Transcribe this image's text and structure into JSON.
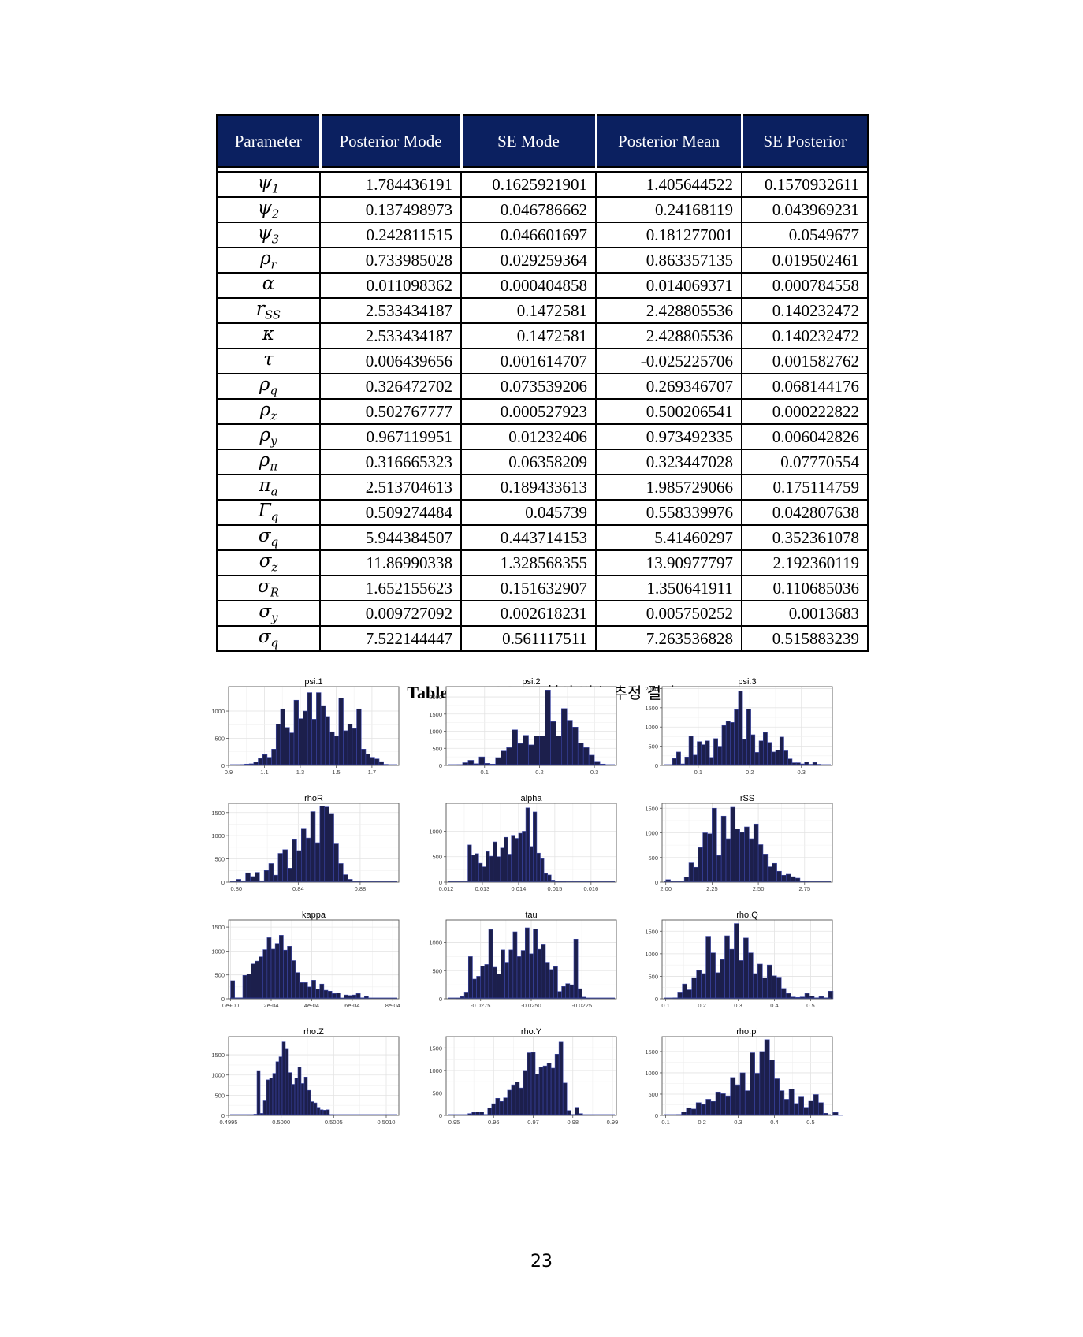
{
  "table": {
    "headers": [
      "Parameter",
      "Posterior Mode",
      "SE Mode",
      "Posterior Mean",
      "SE Posterior"
    ],
    "rows": [
      {
        "sym": "ψ",
        "sub": "1",
        "vals": [
          "1.784436191",
          "0.1625921901",
          "1.405644522",
          "0.1570932611"
        ]
      },
      {
        "sym": "ψ",
        "sub": "2",
        "vals": [
          "0.137498973",
          "0.046786662",
          "0.24168119",
          "0.043969231"
        ]
      },
      {
        "sym": "ψ",
        "sub": "3",
        "vals": [
          "0.242811515",
          "0.046601697",
          "0.181277001",
          "0.0549677"
        ]
      },
      {
        "sym": "ρ",
        "sub": "r",
        "vals": [
          "0.733985028",
          "0.029259364",
          "0.863357135",
          "0.019502461"
        ]
      },
      {
        "sym": "α",
        "sub": "",
        "vals": [
          "0.011098362",
          "0.000404858",
          "0.014069371",
          "0.000784558"
        ]
      },
      {
        "sym": "r",
        "sub": "SS",
        "vals": [
          "2.533434187",
          "0.1472581",
          "2.428805536",
          "0.140232472"
        ]
      },
      {
        "sym": "κ",
        "sub": "",
        "vals": [
          "2.533434187",
          "0.1472581",
          "2.428805536",
          "0.140232472"
        ]
      },
      {
        "sym": "τ",
        "sub": "",
        "vals": [
          "0.006439656",
          "0.001614707",
          "-0.025225706",
          "0.001582762"
        ]
      },
      {
        "sym": "ρ",
        "sub": "q",
        "vals": [
          "0.326472702",
          "0.073539206",
          "0.269346707",
          "0.068144176"
        ]
      },
      {
        "sym": "ρ",
        "sub": "z",
        "vals": [
          "0.502767777",
          "0.000527923",
          "0.500206541",
          "0.000222822"
        ]
      },
      {
        "sym": "ρ",
        "sub": "y",
        "vals": [
          "0.967119951",
          "0.01232406",
          "0.973492335",
          "0.006042826"
        ]
      },
      {
        "sym": "ρ",
        "sub": "π",
        "vals": [
          "0.316665323",
          "0.06358209",
          "0.323447028",
          "0.07770554"
        ]
      },
      {
        "sym": "π",
        "sub": "a",
        "vals": [
          "2.513704613",
          "0.189433613",
          "1.985729066",
          "0.175114759"
        ]
      },
      {
        "sym": "Γ",
        "sub": "q",
        "vals": [
          "0.509274484",
          "0.045739",
          "0.558339976",
          "0.042807638"
        ]
      },
      {
        "sym": "σ",
        "sub": "q",
        "vals": [
          "5.944384507",
          "0.443714153",
          "5.41460297",
          "0.352361078"
        ]
      },
      {
        "sym": "σ",
        "sub": "z",
        "vals": [
          "11.86990338",
          "1.328568355",
          "13.90977797",
          "2.192360119"
        ]
      },
      {
        "sym": "σ",
        "sub": "R",
        "vals": [
          "1.652155623",
          "0.151632907",
          "1.350641911",
          "0.110685036"
        ]
      },
      {
        "sym": "σ",
        "sub": "y",
        "vals": [
          "0.009727092",
          "0.002618231",
          "0.005750252",
          "0.0013683"
        ]
      },
      {
        "sym": "σ",
        "sub": "q",
        "vals": [
          "7.522144447",
          "0.561117511",
          "7.263536828",
          "0.515883239"
        ]
      }
    ]
  },
  "caption": {
    "bold": "Table A2.",
    "text": "DSGE 모형의 변수 추정 결과"
  },
  "page_number": "23",
  "colors": {
    "header_bg": "#0b2060",
    "bar_fill": "#1c1f4c",
    "bar_edge": "#3c46a8",
    "density_line": "#2c3aa0"
  },
  "chart_data": [
    {
      "type": "bar",
      "title": "psi.1",
      "xlim": [
        0.9,
        1.85
      ],
      "ylim": [
        0,
        1450
      ],
      "xticks": [
        0.9,
        1.1,
        1.3,
        1.5,
        1.7
      ],
      "xtick_labels": [
        "0.9",
        "1.1",
        "1.3",
        "1.5",
        "1.7"
      ],
      "yticks": [
        0,
        500,
        1000
      ],
      "ytick_labels": [
        "0",
        "500",
        "1000"
      ],
      "bin_start": 0.94,
      "bin_width": 0.025,
      "values": [
        10,
        15,
        25,
        30,
        60,
        130,
        200,
        150,
        300,
        760,
        1040,
        700,
        600,
        1200,
        860,
        1000,
        1340,
        850,
        1340,
        1100,
        900,
        620,
        540,
        1240,
        640,
        760,
        680,
        1040,
        300,
        210,
        150,
        120,
        70,
        20
      ]
    },
    {
      "type": "bar",
      "title": "psi.2",
      "xlim": [
        0.03,
        0.34
      ],
      "ylim": [
        0,
        2300
      ],
      "xticks": [
        0.1,
        0.2,
        0.3
      ],
      "xtick_labels": [
        "0.1",
        "0.2",
        "0.3"
      ],
      "yticks": [
        0,
        500,
        1000,
        1500,
        2000
      ],
      "ytick_labels": [
        "0",
        "500",
        "1000",
        "1500",
        "2000"
      ],
      "bin_start": 0.05,
      "bin_width": 0.01,
      "values": [
        20,
        80,
        150,
        50,
        250,
        60,
        40,
        230,
        420,
        520,
        1040,
        640,
        880,
        600,
        860,
        860,
        2200,
        1280,
        860,
        1660,
        1320,
        1120,
        660,
        520,
        300,
        120,
        40,
        15
      ]
    },
    {
      "type": "bar",
      "title": "psi.3",
      "xlim": [
        0.03,
        0.36
      ],
      "ylim": [
        0,
        2050
      ],
      "xticks": [
        0.1,
        0.2,
        0.3
      ],
      "xtick_labels": [
        "0.1",
        "0.2",
        "0.3"
      ],
      "yticks": [
        0,
        500,
        1000,
        1500,
        2000
      ],
      "ytick_labels": [
        "0",
        "500",
        "1000",
        "1500",
        "2000"
      ],
      "bin_start": 0.05,
      "bin_width": 0.008,
      "values": [
        180,
        350,
        40,
        220,
        760,
        270,
        620,
        540,
        640,
        210,
        700,
        500,
        1040,
        1150,
        1120,
        1450,
        1930,
        680,
        1470,
        800,
        340,
        640,
        860,
        600,
        350,
        400,
        740,
        380,
        170,
        70,
        70,
        40,
        90,
        30,
        80,
        30
      ]
    },
    {
      "type": "bar",
      "title": "rhoR",
      "xlim": [
        0.795,
        0.905
      ],
      "ylim": [
        0,
        1700
      ],
      "xticks": [
        0.8,
        0.84,
        0.88
      ],
      "xtick_labels": [
        "0.80",
        "0.84",
        "0.88"
      ],
      "yticks": [
        0,
        500,
        1000,
        1500
      ],
      "ytick_labels": [
        "0",
        "500",
        "1000",
        "1500"
      ],
      "bin_start": 0.8,
      "bin_width": 0.003,
      "values": [
        60,
        30,
        200,
        120,
        210,
        30,
        250,
        400,
        150,
        620,
        700,
        300,
        930,
        680,
        1160,
        950,
        1520,
        850,
        1640,
        1620,
        1480,
        840,
        400,
        160,
        60,
        20,
        10
      ]
    },
    {
      "type": "bar",
      "title": "alpha",
      "xlim": [
        0.012,
        0.0167
      ],
      "ylim": [
        0,
        1550
      ],
      "xticks": [
        0.012,
        0.013,
        0.014,
        0.015,
        0.016
      ],
      "xtick_labels": [
        "0.012",
        "0.013",
        "0.014",
        "0.015",
        "0.016"
      ],
      "yticks": [
        0,
        500,
        1000
      ],
      "ytick_labels": [
        "0",
        "500",
        "1000"
      ],
      "bin_start": 0.0126,
      "bin_width": 0.0001,
      "values": [
        730,
        530,
        560,
        370,
        300,
        600,
        510,
        790,
        500,
        670,
        880,
        550,
        920,
        860,
        960,
        1000,
        1460,
        700,
        1380,
        570,
        460,
        170,
        140,
        40,
        10,
        10,
        5
      ]
    },
    {
      "type": "bar",
      "title": "rSS",
      "xlim": [
        1.98,
        2.9
      ],
      "ylim": [
        0,
        1600
      ],
      "xticks": [
        2.0,
        2.25,
        2.5,
        2.75
      ],
      "xtick_labels": [
        "2.00",
        "2.25",
        "2.50",
        "2.75"
      ],
      "yticks": [
        0,
        500,
        1000,
        1500
      ],
      "ytick_labels": [
        "0",
        "500",
        "1000",
        "1500"
      ],
      "bin_start": 2.0,
      "bin_width": 0.025,
      "values": [
        50,
        5,
        5,
        5,
        100,
        390,
        300,
        700,
        1000,
        980,
        1500,
        540,
        1340,
        880,
        1520,
        1080,
        1010,
        1120,
        880,
        1180,
        760,
        570,
        310,
        380,
        220,
        140,
        160,
        110,
        80,
        10,
        5
      ]
    },
    {
      "type": "bar",
      "title": "kappa",
      "xlim": [
        -1e-05,
        0.00083
      ],
      "ylim": [
        0,
        1650
      ],
      "xticks": [
        0,
        0.0002,
        0.0004,
        0.0006,
        0.0008
      ],
      "xtick_labels": [
        "0e+00",
        "2e-04",
        "4e-04",
        "6e-04",
        "8e-04"
      ],
      "yticks": [
        0,
        500,
        1000,
        1500
      ],
      "ytick_labels": [
        "0",
        "500",
        "1000",
        "1500"
      ],
      "bin_start": 0.0,
      "bin_width": 2e-05,
      "values": [
        380,
        20,
        20,
        490,
        520,
        730,
        790,
        880,
        1030,
        1280,
        1040,
        1160,
        1330,
        1020,
        1100,
        800,
        550,
        340,
        340,
        250,
        390,
        210,
        310,
        180,
        160,
        110,
        120,
        10,
        80,
        70,
        80,
        110,
        20,
        50
      ]
    },
    {
      "type": "bar",
      "title": "tau",
      "xlim": [
        -0.0292,
        -0.0208
      ],
      "ylim": [
        0,
        1400
      ],
      "xticks": [
        -0.0275,
        -0.025,
        -0.0225
      ],
      "xtick_labels": [
        "-0.0275",
        "-0.0250",
        "-0.0225"
      ],
      "yticks": [
        0,
        500,
        1000
      ],
      "ytick_labels": [
        "0",
        "500",
        "1000"
      ],
      "bin_start": -0.0287,
      "bin_width": 0.0002,
      "values": [
        5,
        40,
        120,
        750,
        350,
        400,
        580,
        610,
        1230,
        560,
        440,
        870,
        650,
        870,
        1190,
        750,
        860,
        1260,
        800,
        1240,
        880,
        960,
        650,
        520,
        570,
        130,
        220,
        270,
        250,
        1060,
        180,
        30,
        10
      ]
    },
    {
      "type": "bar",
      "title": "rho.Q",
      "xlim": [
        0.09,
        0.56
      ],
      "ylim": [
        0,
        1750
      ],
      "xticks": [
        0.1,
        0.2,
        0.3,
        0.4,
        0.5
      ],
      "xtick_labels": [
        "0.1",
        "0.2",
        "0.3",
        "0.4",
        "0.5"
      ],
      "yticks": [
        0,
        500,
        1000,
        1500
      ],
      "ytick_labels": [
        "0",
        "500",
        "1000",
        "1500"
      ],
      "bin_start": 0.12,
      "bin_width": 0.013,
      "values": [
        20,
        150,
        330,
        200,
        470,
        630,
        560,
        1390,
        1020,
        580,
        870,
        1400,
        1100,
        1670,
        850,
        1350,
        1020,
        560,
        770,
        470,
        750,
        510,
        480,
        230,
        120,
        40,
        30,
        40,
        120,
        60,
        20,
        50,
        20,
        170
      ]
    },
    {
      "type": "bar",
      "title": "rho.Z",
      "xlim": [
        0.4995,
        0.50112
      ],
      "ylim": [
        0,
        1950
      ],
      "xticks": [
        0.4995,
        0.5,
        0.5005,
        0.501
      ],
      "xtick_labels": [
        "0.4995",
        "0.5000",
        "0.5005",
        "0.5010"
      ],
      "yticks": [
        0,
        500,
        1000,
        1500
      ],
      "ytick_labels": [
        "0",
        "500",
        "1000",
        "1500"
      ],
      "bin_start": 0.49968,
      "bin_width": 3e-05,
      "values": [
        10,
        10,
        30,
        1110,
        50,
        380,
        880,
        920,
        1040,
        1330,
        1450,
        1820,
        1640,
        1060,
        770,
        930,
        1200,
        790,
        950,
        620,
        340,
        310,
        200,
        140,
        130,
        140,
        20,
        10
      ]
    },
    {
      "type": "bar",
      "title": "rho.Y",
      "xlim": [
        0.948,
        0.991
      ],
      "ylim": [
        0,
        1750
      ],
      "xticks": [
        0.95,
        0.96,
        0.97,
        0.98,
        0.99
      ],
      "xtick_labels": [
        "0.95",
        "0.96",
        "0.97",
        "0.98",
        "0.99"
      ],
      "yticks": [
        0,
        500,
        1000,
        1500
      ],
      "ytick_labels": [
        "0",
        "500",
        "1000",
        "1500"
      ],
      "bin_start": 0.9505,
      "bin_width": 0.001,
      "values": [
        10,
        5,
        5,
        40,
        70,
        80,
        80,
        20,
        170,
        260,
        380,
        310,
        390,
        560,
        680,
        740,
        610,
        1000,
        1390,
        1400,
        920,
        1070,
        1100,
        1160,
        1050,
        1360,
        1630,
        720,
        110,
        20,
        180,
        40,
        10,
        5,
        5
      ]
    },
    {
      "type": "bar",
      "title": "rho.pi",
      "xlim": [
        0.09,
        0.56
      ],
      "ylim": [
        0,
        1850
      ],
      "xticks": [
        0.1,
        0.2,
        0.3,
        0.4,
        0.5
      ],
      "xtick_labels": [
        "0.1",
        "0.2",
        "0.3",
        "0.4",
        "0.5"
      ],
      "yticks": [
        0,
        500,
        1000,
        1500
      ],
      "ytick_labels": [
        "0",
        "500",
        "1000",
        "1500"
      ],
      "bin_start": 0.13,
      "bin_width": 0.0135,
      "values": [
        20,
        80,
        180,
        150,
        300,
        260,
        380,
        330,
        550,
        510,
        460,
        890,
        720,
        1000,
        580,
        1470,
        990,
        1500,
        1780,
        1300,
        860,
        580,
        380,
        620,
        280,
        450,
        190,
        350,
        490,
        300,
        50,
        10,
        70,
        10
      ]
    }
  ]
}
